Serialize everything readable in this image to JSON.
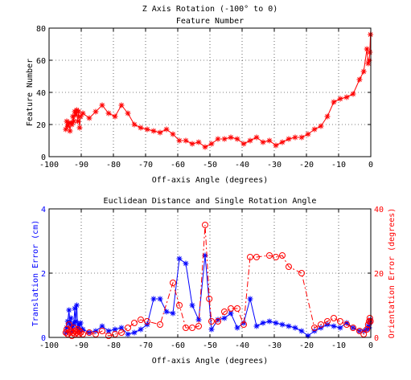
{
  "chart_data": [
    {
      "type": "line",
      "title": "Z Axis Rotation (-100° to 0)",
      "subtitle": "Feature Number",
      "xlabel": "Off-axis Angle (degrees)",
      "ylabel": "Feature Number",
      "xlim": [
        -100,
        0
      ],
      "ylim": [
        0,
        80
      ],
      "xticks": [
        -100,
        -90,
        -80,
        -70,
        -60,
        -50,
        -40,
        -30,
        -20,
        -10,
        0
      ],
      "yticks": [
        0,
        20,
        40,
        60,
        80
      ],
      "grid": true,
      "series": [
        {
          "color": "#ff0000",
          "marker": "star",
          "linestyle": "solid",
          "x": [
            -94.8,
            -94.5,
            -94.2,
            -93.8,
            -93.5,
            -93.2,
            -92.9,
            -92.6,
            -92.3,
            -92.0,
            -91.7,
            -91.4,
            -91.1,
            -90.8,
            -90.5,
            -90.2,
            -89.5,
            -87.5,
            -85.5,
            -83.5,
            -81.5,
            -79.5,
            -77.5,
            -75.5,
            -73.5,
            -71.5,
            -69.5,
            -67.5,
            -65.5,
            -63.5,
            -61.5,
            -59.5,
            -57.5,
            -55.5,
            -53.5,
            -51.5,
            -49.5,
            -47.5,
            -45.5,
            -43.5,
            -41.5,
            -39.5,
            -37.5,
            -35.5,
            -33.5,
            -31.5,
            -29.5,
            -27.5,
            -25.5,
            -23.5,
            -21.5,
            -19.5,
            -17.5,
            -15.5,
            -13.5,
            -11.5,
            -9.5,
            -7.5,
            -5.5,
            -3.5,
            -2.2,
            -1.2,
            -0.8,
            -0.5,
            -0.3,
            -0.1
          ],
          "y": [
            17,
            22,
            19,
            21,
            16,
            21,
            20,
            25,
            22,
            28,
            26,
            29,
            22,
            28,
            18,
            25,
            27,
            24,
            28,
            32,
            27,
            25,
            32,
            27,
            20,
            18,
            17,
            16,
            15,
            17,
            14,
            10,
            10,
            8,
            9,
            6,
            8,
            11,
            11,
            12,
            11,
            8,
            10,
            12,
            9,
            10,
            7,
            9,
            11,
            12,
            12,
            14,
            17,
            19,
            25,
            34,
            36,
            37,
            39,
            48,
            53,
            67,
            58,
            60,
            65,
            76
          ]
        }
      ]
    },
    {
      "type": "line",
      "title": "Euclidean Distance and Single Rotation Angle",
      "xlabel": "Off-axis Angle (degrees)",
      "ylabel": "Translation Error (cm)",
      "ylabel_right": "Orientation Error (degrees)",
      "xlim": [
        -100,
        0
      ],
      "ylim": [
        0,
        4
      ],
      "ylim_right": [
        0,
        40
      ],
      "xticks": [
        -100,
        -90,
        -80,
        -70,
        -60,
        -50,
        -40,
        -30,
        -20,
        -10,
        0
      ],
      "yticks": [
        0,
        2,
        4
      ],
      "yticks_right": [
        0,
        20,
        40
      ],
      "grid": true,
      "series": [
        {
          "color": "#0000ff",
          "marker": "star",
          "linestyle": "solid",
          "axis": "left",
          "x": [
            -94.8,
            -94.5,
            -94.2,
            -93.8,
            -93.5,
            -93.2,
            -92.9,
            -92.6,
            -92.3,
            -92.0,
            -91.7,
            -91.4,
            -91.1,
            -90.8,
            -90.5,
            -90.2,
            -89.5,
            -87.5,
            -85.5,
            -83.5,
            -81.5,
            -79.5,
            -77.5,
            -75.5,
            -73.5,
            -71.5,
            -69.5,
            -67.5,
            -65.5,
            -63.5,
            -61.5,
            -59.5,
            -57.5,
            -55.5,
            -53.5,
            -51.5,
            -49.5,
            -47.5,
            -45.5,
            -43.5,
            -41.5,
            -39.5,
            -37.5,
            -35.5,
            -33.5,
            -31.5,
            -29.5,
            -27.5,
            -25.5,
            -23.5,
            -21.5,
            -19.5,
            -17.5,
            -15.5,
            -13.5,
            -11.5,
            -9.5,
            -7.5,
            -5.5,
            -3.5,
            -2.2,
            -1.2,
            -0.8,
            -0.5,
            -0.3,
            -0.1
          ],
          "y": [
            0.15,
            0.3,
            0.5,
            0.85,
            0.4,
            0.6,
            0.2,
            0.35,
            0.45,
            0.9,
            0.5,
            1.0,
            0.3,
            0.4,
            0.2,
            0.45,
            0.25,
            0.15,
            0.2,
            0.35,
            0.2,
            0.25,
            0.3,
            0.1,
            0.15,
            0.25,
            0.4,
            1.2,
            1.2,
            0.8,
            0.75,
            2.45,
            2.3,
            1.0,
            0.55,
            2.55,
            0.25,
            0.55,
            0.6,
            0.75,
            0.3,
            0.45,
            1.2,
            0.35,
            0.45,
            0.5,
            0.45,
            0.4,
            0.35,
            0.3,
            0.2,
            0.05,
            0.2,
            0.3,
            0.4,
            0.35,
            0.3,
            0.45,
            0.3,
            0.2,
            0.2,
            0.25,
            0.35,
            0.3,
            0.45,
            0.55
          ]
        },
        {
          "color": "#ff0000",
          "marker": "circle",
          "linestyle": "dashdot",
          "axis": "right",
          "x": [
            -94.8,
            -94.5,
            -94.2,
            -93.8,
            -93.5,
            -93.2,
            -92.9,
            -92.6,
            -92.3,
            -92.0,
            -91.7,
            -91.4,
            -91.1,
            -90.8,
            -90.5,
            -90.2,
            -89.5,
            -87.5,
            -85.5,
            -83.5,
            -81.5,
            -79.5,
            -77.5,
            -75.5,
            -73.5,
            -71.5,
            -69.5,
            -65.5,
            -61.5,
            -59.5,
            -57.5,
            -55.5,
            -53.5,
            -51.5,
            -50.2,
            -49.5,
            -47.5,
            -45.5,
            -43.5,
            -41.5,
            -39.5,
            -37.5,
            -35.5,
            -31.5,
            -29.5,
            -27.5,
            -25.5,
            -21.5,
            -17.5,
            -15.5,
            -13.5,
            -11.5,
            -9.5,
            -7.5,
            -5.5,
            -3.5,
            -2.2,
            -1.2,
            -0.8,
            -0.5,
            -0.3,
            -0.1
          ],
          "y": [
            1.5,
            2.5,
            1.0,
            4.0,
            1.5,
            2.0,
            0.5,
            1.5,
            3.0,
            1.0,
            2.0,
            1.5,
            2.5,
            1.0,
            2.0,
            1.5,
            1.0,
            1.5,
            1.0,
            2.0,
            0.5,
            1.0,
            1.5,
            3.0,
            4.5,
            5.5,
            5.0,
            4.0,
            17.0,
            10.0,
            3.0,
            3.0,
            3.5,
            35.0,
            12.0,
            5.0,
            5.0,
            8.0,
            9.0,
            9.0,
            4.0,
            25.0,
            25.0,
            25.5,
            25.0,
            25.5,
            22.0,
            20.0,
            3.0,
            4.0,
            5.0,
            6.0,
            5.0,
            4.0,
            3.0,
            2.0,
            1.0,
            2.5,
            4.0,
            5.0,
            6.0,
            5.0
          ]
        }
      ]
    }
  ]
}
